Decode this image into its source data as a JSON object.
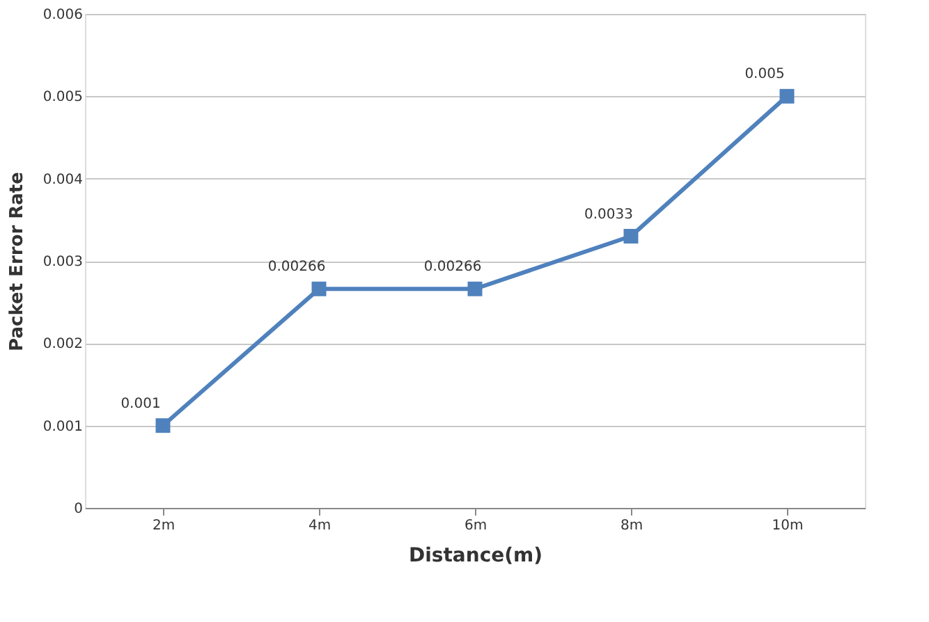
{
  "chart_data": {
    "type": "line",
    "xlabel": "Distance(m)",
    "ylabel": "Packet Error Rate",
    "categories": [
      "2m",
      "4m",
      "6m",
      "8m",
      "10m"
    ],
    "series": [
      {
        "color": "#4f81bd",
        "values": [
          0.001,
          0.00266,
          0.00266,
          0.0033,
          0.005
        ]
      }
    ],
    "ylim": [
      0,
      0.006
    ],
    "yticks": [
      0,
      0.001,
      0.002,
      0.003,
      0.004,
      0.005,
      0.006
    ],
    "grid": "y",
    "marker": "square",
    "line_style": "solid",
    "data_labels": true
  }
}
